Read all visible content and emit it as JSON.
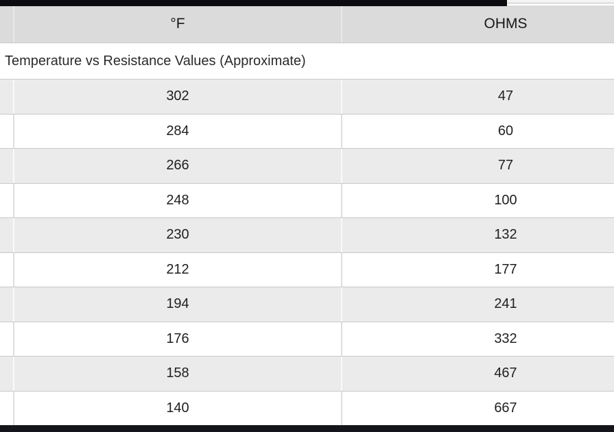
{
  "table": {
    "caption": "Temperature vs Resistance Values (Approximate)",
    "columns": [
      {
        "label": "°F"
      },
      {
        "label": "OHMS"
      }
    ],
    "rows": [
      {
        "f": "302",
        "ohms": "47"
      },
      {
        "f": "284",
        "ohms": "60"
      },
      {
        "f": "266",
        "ohms": "77"
      },
      {
        "f": "248",
        "ohms": "100"
      },
      {
        "f": "230",
        "ohms": "132"
      },
      {
        "f": "212",
        "ohms": "177"
      },
      {
        "f": "194",
        "ohms": "241"
      },
      {
        "f": "176",
        "ohms": "332"
      },
      {
        "f": "158",
        "ohms": "467"
      },
      {
        "f": "140",
        "ohms": "667"
      }
    ]
  },
  "colors": {
    "header_bg": "#dbdbdb",
    "stripe_bg": "#ebebeb",
    "row_bg": "#ffffff",
    "row_border": "#c8c8c8",
    "text": "#1f1f1f",
    "top_bar": "#0c0c10",
    "bottom_bar": "#14141b"
  },
  "chart_data": {
    "type": "table",
    "title": "Temperature vs Resistance Values (Approximate)",
    "columns": [
      "°F",
      "OHMS"
    ],
    "rows": [
      [
        302,
        47
      ],
      [
        284,
        60
      ],
      [
        266,
        77
      ],
      [
        248,
        100
      ],
      [
        230,
        132
      ],
      [
        212,
        177
      ],
      [
        194,
        241
      ],
      [
        176,
        332
      ],
      [
        158,
        467
      ],
      [
        140,
        667
      ]
    ]
  }
}
